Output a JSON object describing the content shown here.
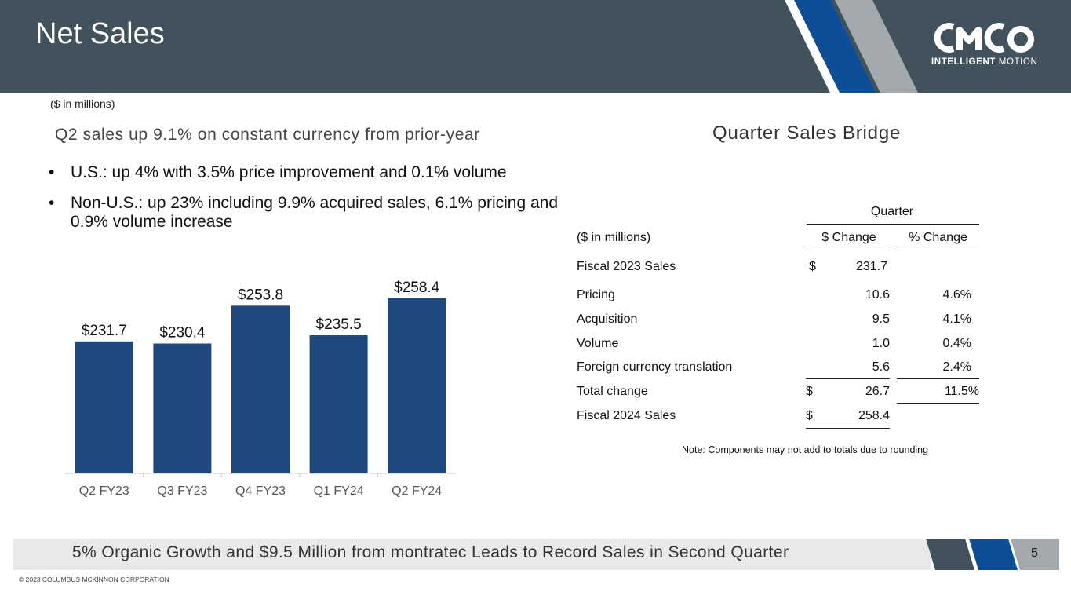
{
  "header": {
    "title": "Net Sales",
    "logo_main": "CMCO",
    "logo_sub_bold": "INTELLIGENT",
    "logo_sub_light": "MOTION",
    "colors": {
      "header_bg": "#42525c",
      "stripe_blue": "#0e4e96",
      "stripe_gray": "#a3a9ad",
      "stripe_white": "#ffffff"
    }
  },
  "units_note": "($ in millions)",
  "left": {
    "subheading": "Q2 sales up 9.1% on constant currency from prior-year",
    "bullets": [
      "U.S.: up 4% with 3.5% price improvement and 0.1% volume",
      "Non-U.S.: up 23% including 9.9% acquired sales, 6.1% pricing and 0.9% volume increase"
    ]
  },
  "chart_data": {
    "type": "bar",
    "categories": [
      "Q2 FY23",
      "Q3 FY23",
      "Q4 FY23",
      "Q1 FY24",
      "Q2 FY24"
    ],
    "values": [
      231.7,
      230.4,
      253.8,
      235.5,
      258.4
    ],
    "data_labels": [
      "$231.7",
      "$230.4",
      "$253.8",
      "$235.5",
      "$258.4"
    ],
    "title": "",
    "xlabel": "",
    "ylabel": "",
    "ylim": [
      150,
      270
    ],
    "grid": false,
    "legend": "none",
    "bar_color": "#1f497d"
  },
  "bridge": {
    "title": "Quarter Sales Bridge",
    "group_header": "Quarter",
    "units_label": "($ in millions)",
    "col_dollar": "$ Change",
    "col_pct": "% Change",
    "currency_symbol": "$",
    "rows": [
      {
        "label": "Fiscal 2023 Sales",
        "dollar": "231.7",
        "pct": ""
      },
      {
        "label": "Pricing",
        "dollar": "10.6",
        "pct": "4.6%"
      },
      {
        "label": "Acquisition",
        "dollar": "9.5",
        "pct": "4.1%"
      },
      {
        "label": "Volume",
        "dollar": "1.0",
        "pct": "0.4%"
      },
      {
        "label": "Foreign currency translation",
        "dollar": "5.6",
        "pct": "2.4%"
      },
      {
        "label": "Total change",
        "dollar": "26.7",
        "pct": "11.5%"
      },
      {
        "label": "Fiscal 2024 Sales",
        "dollar": "258.4",
        "pct": ""
      }
    ],
    "note": "Note: Components may not add to totals due to rounding"
  },
  "footer": {
    "headline": "5% Organic Growth and $9.5 Million from montratec Leads to Record Sales in Second Quarter",
    "page_number": "5",
    "copyright": "© 2023 COLUMBUS MCKINNON CORPORATION",
    "colors": {
      "bar": "#e8e9eb",
      "shape_dark": "#42525c",
      "shape_blue": "#0e4e96",
      "shape_gray": "#a3a9ad"
    }
  }
}
